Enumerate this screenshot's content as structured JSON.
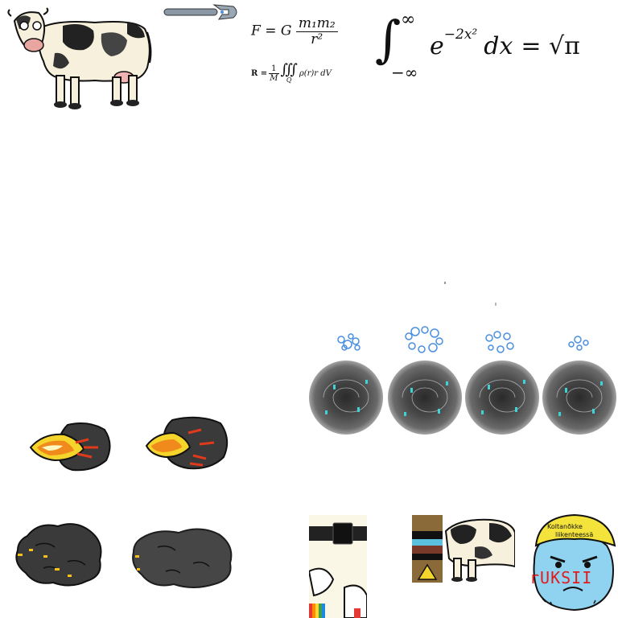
{
  "formulas": {
    "gravity": {
      "lhs": "F = G",
      "numerator": "m₁m₂",
      "denominator": "r²"
    },
    "center_of_mass": {
      "lhs": "R = ",
      "numerator": "1",
      "denominator": "M",
      "integral": "∭",
      "domain": "Q",
      "integrand": "ρ(r)r dV"
    },
    "gaussian": {
      "upper": "∞",
      "lower": "−∞",
      "integrand": "e",
      "exponent": "−2x²",
      "differential": "dx",
      "rhs": "= √π"
    }
  },
  "sign": {
    "line1": "Koltanðkke",
    "line2": "liikenteessä",
    "stamp": "rUKSII"
  },
  "colors": {
    "background": "#ffffff",
    "vortex_dark": "#2b2b2b",
    "splash_blue": "#4a8fe0",
    "fire_orange": "#f08a1c",
    "smoke": "#3a3a3a",
    "helmet_yellow": "#f3e33b",
    "face_blue": "#8fd3f0",
    "stamp_red": "#e01c1c"
  },
  "icons": [
    "cow-sprite",
    "wrench-icon",
    "water-splash-sprite",
    "vortex-sprite",
    "fireball-sprite",
    "smoke-sprite",
    "cow-tile",
    "worker-face-sprite"
  ]
}
